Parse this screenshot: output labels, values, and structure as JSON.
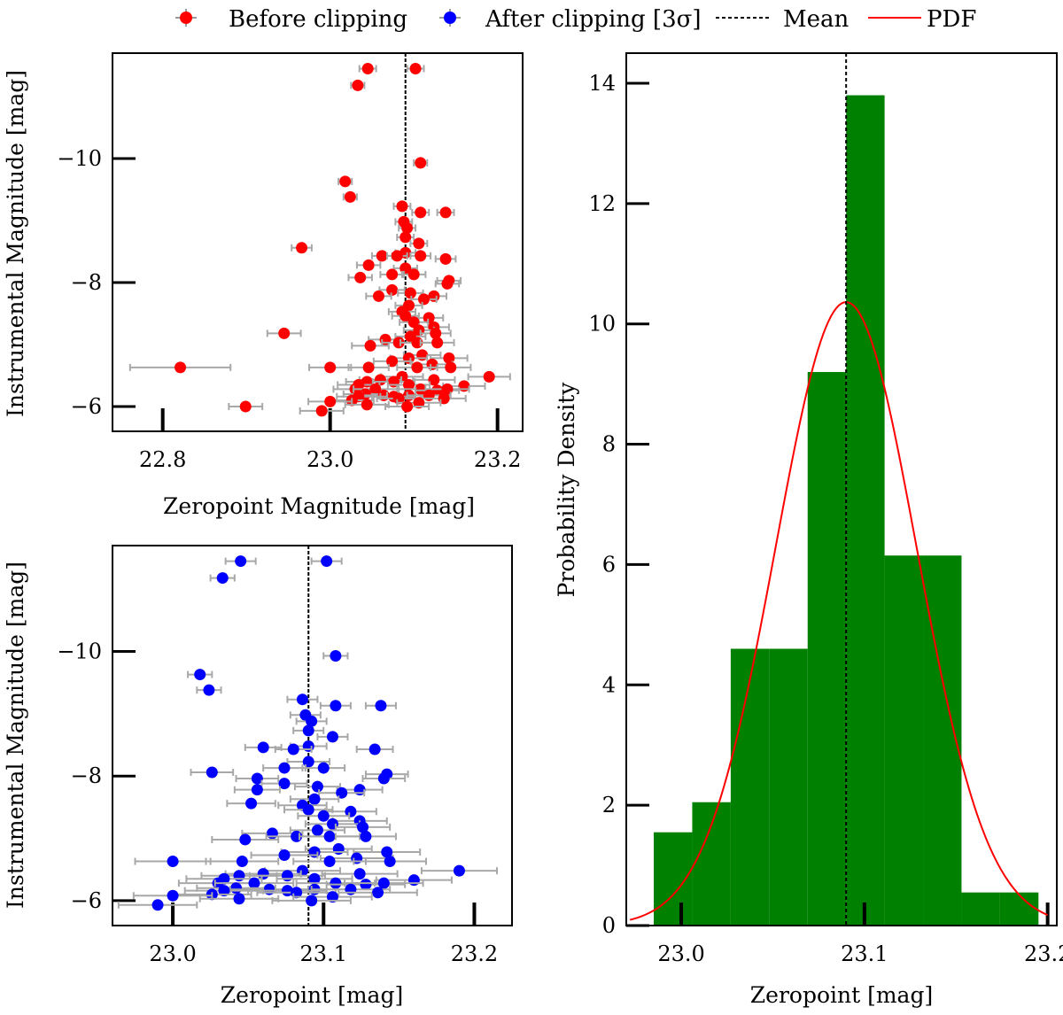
{
  "legend": {
    "before": "Before clipping",
    "after": "After clipping [3σ]",
    "mean": "Mean",
    "pdf": "PDF"
  },
  "chart_data": [
    {
      "id": "before",
      "type": "scatter",
      "xlabel": "Zeropoint Magnitude [mag]",
      "ylabel": "Instrumental Magnitude [mag]",
      "xlim": [
        22.74,
        23.23
      ],
      "ylim": [
        -5.6,
        -11.7
      ],
      "xticks": [
        22.8,
        23.0,
        23.2
      ],
      "xtick_labels": [
        "22.8",
        "23.0",
        "23.2"
      ],
      "yticks": [
        -10,
        -8,
        -6
      ],
      "ytick_labels": [
        "−10",
        "−8",
        "−6"
      ],
      "mean": 23.09,
      "color": "#ff0000",
      "points": [
        [
          23.045,
          -11.45,
          0.01
        ],
        [
          23.102,
          -11.45,
          0.01
        ],
        [
          23.033,
          -11.18,
          0.008
        ],
        [
          23.108,
          -9.93,
          0.008
        ],
        [
          23.018,
          -9.63,
          0.008
        ],
        [
          23.024,
          -9.38,
          0.008
        ],
        [
          23.138,
          -9.13,
          0.01
        ],
        [
          23.086,
          -9.23,
          0.01
        ],
        [
          23.108,
          -9.13,
          0.01
        ],
        [
          23.088,
          -8.98,
          0.01
        ],
        [
          23.092,
          -8.88,
          0.01
        ],
        [
          23.09,
          -8.73,
          0.01
        ],
        [
          23.106,
          -8.63,
          0.01
        ],
        [
          23.09,
          -8.48,
          0.012
        ],
        [
          22.966,
          -8.56,
          0.012
        ],
        [
          23.062,
          -8.43,
          0.012
        ],
        [
          23.08,
          -8.43,
          0.012
        ],
        [
          23.108,
          -8.43,
          0.012
        ],
        [
          23.138,
          -8.38,
          0.012
        ],
        [
          23.09,
          -8.23,
          0.014
        ],
        [
          23.046,
          -8.28,
          0.014
        ],
        [
          23.036,
          -8.08,
          0.014
        ],
        [
          23.142,
          -8.03,
          0.014
        ],
        [
          23.074,
          -8.13,
          0.014
        ],
        [
          23.1,
          -8.13,
          0.014
        ],
        [
          23.14,
          -7.98,
          0.014
        ],
        [
          23.074,
          -7.88,
          0.015
        ],
        [
          23.096,
          -7.83,
          0.015
        ],
        [
          23.124,
          -7.78,
          0.015
        ],
        [
          23.058,
          -7.78,
          0.015
        ],
        [
          23.112,
          -7.73,
          0.015
        ],
        [
          23.094,
          -7.63,
          0.016
        ],
        [
          23.086,
          -7.53,
          0.016
        ],
        [
          23.118,
          -7.43,
          0.017
        ],
        [
          23.09,
          -7.46,
          0.016
        ],
        [
          23.1,
          -7.36,
          0.017
        ],
        [
          23.124,
          -7.28,
          0.018
        ],
        [
          23.106,
          -7.23,
          0.018
        ],
        [
          23.126,
          -7.18,
          0.018
        ],
        [
          23.096,
          -7.13,
          0.018
        ],
        [
          22.945,
          -7.18,
          0.02
        ],
        [
          23.066,
          -7.08,
          0.02
        ],
        [
          23.082,
          -7.03,
          0.02
        ],
        [
          23.104,
          -7.03,
          0.02
        ],
        [
          23.128,
          -7.03,
          0.02
        ],
        [
          23.048,
          -6.98,
          0.022
        ],
        [
          23.11,
          -6.83,
          0.022
        ],
        [
          23.094,
          -6.78,
          0.022
        ],
        [
          23.142,
          -6.78,
          0.022
        ],
        [
          23.074,
          -6.73,
          0.022
        ],
        [
          23.122,
          -6.68,
          0.024
        ],
        [
          23.046,
          -6.63,
          0.024
        ],
        [
          22.821,
          -6.63,
          0.06
        ],
        [
          23.0,
          -6.63,
          0.025
        ],
        [
          23.104,
          -6.63,
          0.024
        ],
        [
          23.144,
          -6.63,
          0.024
        ],
        [
          23.086,
          -6.48,
          0.025
        ],
        [
          23.19,
          -6.48,
          0.025
        ],
        [
          23.06,
          -6.43,
          0.025
        ],
        [
          23.124,
          -6.43,
          0.025
        ],
        [
          23.044,
          -6.4,
          0.025
        ],
        [
          23.076,
          -6.4,
          0.025
        ],
        [
          23.034,
          -6.35,
          0.025
        ],
        [
          23.094,
          -6.35,
          0.025
        ],
        [
          23.16,
          -6.33,
          0.025
        ],
        [
          23.03,
          -6.28,
          0.026
        ],
        [
          23.054,
          -6.28,
          0.026
        ],
        [
          23.108,
          -6.28,
          0.026
        ],
        [
          23.128,
          -6.26,
          0.026
        ],
        [
          23.14,
          -6.28,
          0.026
        ],
        [
          23.042,
          -6.2,
          0.026
        ],
        [
          23.064,
          -6.18,
          0.026
        ],
        [
          23.094,
          -6.18,
          0.026
        ],
        [
          23.118,
          -6.18,
          0.026
        ],
        [
          23.034,
          -6.16,
          0.026
        ],
        [
          23.076,
          -6.16,
          0.026
        ],
        [
          23.082,
          -6.13,
          0.026
        ],
        [
          23.136,
          -6.13,
          0.026
        ],
        [
          23.026,
          -6.1,
          0.026
        ],
        [
          23.0,
          -6.08,
          0.026
        ],
        [
          23.106,
          -6.06,
          0.026
        ],
        [
          23.044,
          -6.03,
          0.026
        ],
        [
          23.092,
          -6.0,
          0.026
        ],
        [
          22.899,
          -6.0,
          0.02
        ],
        [
          22.99,
          -5.93,
          0.026
        ]
      ]
    },
    {
      "id": "after",
      "type": "scatter",
      "xlabel": "Zeropoint [mag]",
      "ylabel": "Instrumental Magnitude [mag]",
      "xlim": [
        22.96,
        23.225
      ],
      "ylim": [
        -5.6,
        -11.7
      ],
      "xticks": [
        23.0,
        23.1,
        23.2
      ],
      "xtick_labels": [
        "23.0",
        "23.1",
        "23.2"
      ],
      "yticks": [
        -10,
        -8,
        -6
      ],
      "ytick_labels": [
        "−10",
        "−8",
        "−6"
      ],
      "mean": 23.09,
      "color": "#0000ff",
      "points": [
        [
          23.045,
          -11.45,
          0.01
        ],
        [
          23.102,
          -11.45,
          0.01
        ],
        [
          23.033,
          -11.18,
          0.008
        ],
        [
          23.108,
          -9.93,
          0.008
        ],
        [
          23.018,
          -9.63,
          0.008
        ],
        [
          23.024,
          -9.38,
          0.008
        ],
        [
          23.138,
          -9.13,
          0.01
        ],
        [
          23.086,
          -9.23,
          0.01
        ],
        [
          23.108,
          -9.13,
          0.01
        ],
        [
          23.088,
          -8.98,
          0.01
        ],
        [
          23.092,
          -8.88,
          0.01
        ],
        [
          23.09,
          -8.73,
          0.01
        ],
        [
          23.106,
          -8.63,
          0.01
        ],
        [
          23.09,
          -8.48,
          0.012
        ],
        [
          23.06,
          -8.46,
          0.012
        ],
        [
          23.08,
          -8.43,
          0.012
        ],
        [
          23.134,
          -8.43,
          0.012
        ],
        [
          23.09,
          -8.23,
          0.014
        ],
        [
          23.056,
          -7.96,
          0.014
        ],
        [
          23.026,
          -8.06,
          0.014
        ],
        [
          23.142,
          -8.03,
          0.014
        ],
        [
          23.074,
          -8.13,
          0.014
        ],
        [
          23.1,
          -8.13,
          0.014
        ],
        [
          23.14,
          -7.96,
          0.014
        ],
        [
          23.074,
          -7.88,
          0.015
        ],
        [
          23.096,
          -7.83,
          0.015
        ],
        [
          23.124,
          -7.78,
          0.015
        ],
        [
          23.056,
          -7.78,
          0.015
        ],
        [
          23.112,
          -7.73,
          0.015
        ],
        [
          23.094,
          -7.63,
          0.016
        ],
        [
          23.086,
          -7.53,
          0.016
        ],
        [
          23.052,
          -7.56,
          0.016
        ],
        [
          23.118,
          -7.43,
          0.017
        ],
        [
          23.09,
          -7.46,
          0.016
        ],
        [
          23.1,
          -7.36,
          0.017
        ],
        [
          23.124,
          -7.28,
          0.018
        ],
        [
          23.106,
          -7.23,
          0.018
        ],
        [
          23.126,
          -7.18,
          0.018
        ],
        [
          23.096,
          -7.13,
          0.018
        ],
        [
          23.066,
          -7.08,
          0.02
        ],
        [
          23.082,
          -7.03,
          0.02
        ],
        [
          23.104,
          -7.03,
          0.02
        ],
        [
          23.128,
          -7.03,
          0.02
        ],
        [
          23.048,
          -6.98,
          0.022
        ],
        [
          23.11,
          -6.83,
          0.022
        ],
        [
          23.094,
          -6.78,
          0.022
        ],
        [
          23.142,
          -6.78,
          0.022
        ],
        [
          23.074,
          -6.73,
          0.022
        ],
        [
          23.122,
          -6.68,
          0.024
        ],
        [
          23.046,
          -6.63,
          0.024
        ],
        [
          23.0,
          -6.63,
          0.025
        ],
        [
          23.104,
          -6.63,
          0.024
        ],
        [
          23.144,
          -6.63,
          0.024
        ],
        [
          23.086,
          -6.48,
          0.025
        ],
        [
          23.19,
          -6.48,
          0.025
        ],
        [
          23.06,
          -6.43,
          0.025
        ],
        [
          23.124,
          -6.43,
          0.025
        ],
        [
          23.044,
          -6.4,
          0.025
        ],
        [
          23.076,
          -6.4,
          0.025
        ],
        [
          23.034,
          -6.35,
          0.025
        ],
        [
          23.094,
          -6.35,
          0.025
        ],
        [
          23.16,
          -6.33,
          0.025
        ],
        [
          23.03,
          -6.28,
          0.026
        ],
        [
          23.054,
          -6.28,
          0.026
        ],
        [
          23.108,
          -6.28,
          0.026
        ],
        [
          23.128,
          -6.26,
          0.026
        ],
        [
          23.14,
          -6.28,
          0.026
        ],
        [
          23.042,
          -6.2,
          0.026
        ],
        [
          23.064,
          -6.18,
          0.026
        ],
        [
          23.094,
          -6.18,
          0.026
        ],
        [
          23.118,
          -6.18,
          0.026
        ],
        [
          23.034,
          -6.16,
          0.026
        ],
        [
          23.076,
          -6.16,
          0.026
        ],
        [
          23.082,
          -6.13,
          0.026
        ],
        [
          23.136,
          -6.13,
          0.026
        ],
        [
          23.026,
          -6.1,
          0.026
        ],
        [
          23.0,
          -6.08,
          0.026
        ],
        [
          23.106,
          -6.06,
          0.026
        ],
        [
          23.044,
          -6.03,
          0.026
        ],
        [
          23.092,
          -6.0,
          0.026
        ],
        [
          22.99,
          -5.93,
          0.026
        ]
      ]
    },
    {
      "id": "histogram",
      "type": "bar",
      "xlabel": "Zeropoint [mag]",
      "ylabel": "Probability Density",
      "xlim": [
        22.97,
        23.205
      ],
      "ylim": [
        0,
        14.5
      ],
      "xticks": [
        23.0,
        23.1,
        23.2
      ],
      "xtick_labels": [
        "23.0",
        "23.1",
        "23.2"
      ],
      "yticks": [
        0,
        2,
        4,
        6,
        8,
        10,
        12,
        14
      ],
      "ytick_labels": [
        "0",
        "2",
        "4",
        "6",
        "8",
        "10",
        "12",
        "14"
      ],
      "color": "#008000",
      "bin_edges": [
        22.985,
        23.006,
        23.027,
        23.048,
        23.069,
        23.09,
        23.111,
        23.132,
        23.153,
        23.174,
        23.195
      ],
      "densities": [
        1.55,
        2.05,
        4.6,
        4.6,
        9.2,
        13.8,
        6.15,
        6.15,
        0.55,
        0.55
      ],
      "mean": 23.09,
      "pdf": {
        "mu": 23.09,
        "sigma": 0.0385,
        "x_range": [
          22.972,
          23.2
        ],
        "color": "#ff0000"
      }
    }
  ]
}
